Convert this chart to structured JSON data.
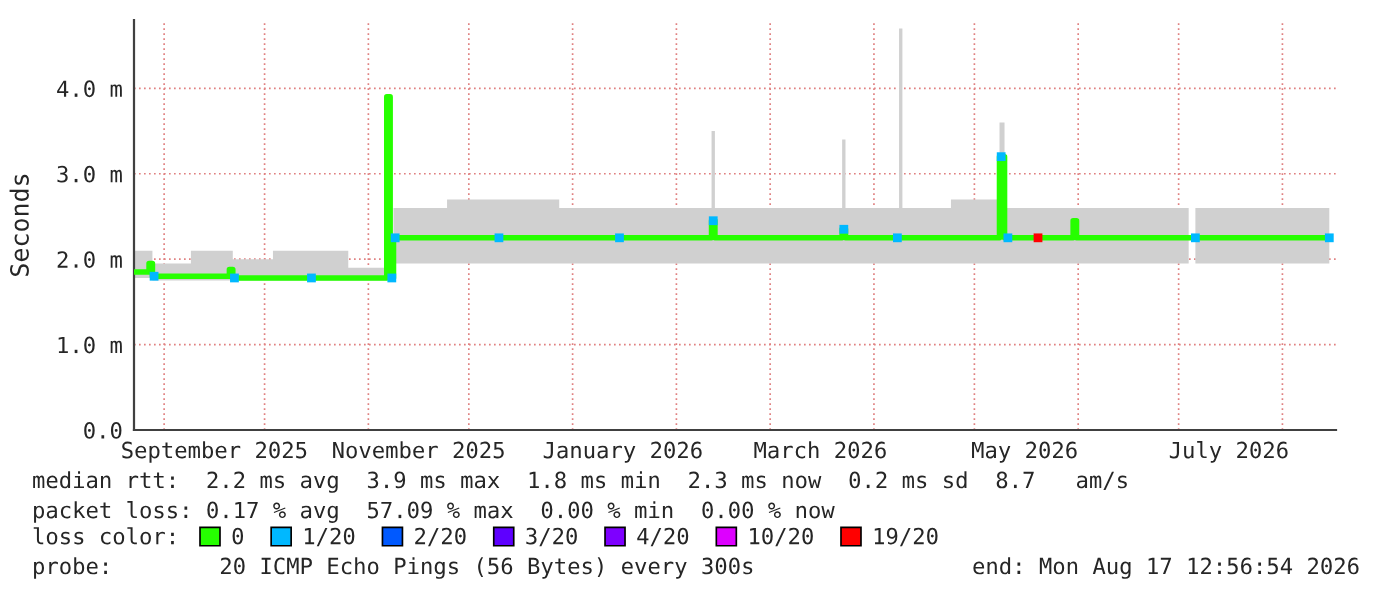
{
  "chart_data": {
    "type": "line",
    "ylabel": "Seconds",
    "x": [
      "2025-08-23",
      "2025-08-27",
      "2025-08-28",
      "2025-08-29",
      "2025-09-20",
      "2025-09-21",
      "2025-09-22",
      "2025-10-15",
      "2025-11-06",
      "2025-11-07",
      "2025-11-08",
      "2025-11-09",
      "2025-12-10",
      "2026-01-15",
      "2026-02-11",
      "2026-02-12",
      "2026-02-13",
      "2026-03-22",
      "2026-03-23",
      "2026-03-24",
      "2026-04-08",
      "2026-04-09",
      "2026-04-10",
      "2026-05-08",
      "2026-05-09",
      "2026-05-11",
      "2026-05-20",
      "2026-05-30",
      "2026-05-31",
      "2026-06-01",
      "2026-07-04",
      "2026-07-05",
      "2026-07-06",
      "2026-08-15"
    ],
    "series": [
      {
        "name": "0",
        "color": "#26ff00",
        "values": [
          1.85,
          1.85,
          1.95,
          1.8,
          1.8,
          1.88,
          1.78,
          1.78,
          1.78,
          3.9,
          1.78,
          2.25,
          2.25,
          2.25,
          2.25,
          2.45,
          2.25,
          2.25,
          2.35,
          2.25,
          2.25,
          2.25,
          2.25,
          2.25,
          3.2,
          2.25,
          2.25,
          2.25,
          2.45,
          2.25,
          2.25,
          null,
          2.25,
          2.25
        ],
        "lower": [
          1.78,
          1.78,
          1.78,
          1.75,
          1.75,
          1.75,
          1.75,
          1.75,
          1.75,
          1.75,
          1.75,
          1.95,
          1.95,
          1.95,
          1.95,
          1.95,
          1.95,
          1.95,
          1.95,
          1.95,
          1.95,
          1.95,
          1.95,
          1.95,
          1.95,
          1.95,
          1.95,
          1.95,
          1.95,
          1.95,
          1.95,
          null,
          1.95,
          1.95
        ],
        "upper": [
          2.1,
          2.1,
          2.1,
          1.95,
          2.1,
          2.1,
          2.0,
          2.1,
          1.9,
          3.9,
          1.9,
          2.6,
          2.7,
          2.6,
          2.6,
          3.5,
          2.6,
          2.6,
          3.4,
          2.6,
          2.6,
          4.7,
          2.6,
          2.7,
          3.6,
          2.6,
          2.6,
          2.6,
          2.6,
          2.6,
          2.6,
          null,
          2.6,
          2.6
        ]
      },
      {
        "name": "1/20",
        "color": "#00b8ff",
        "type": "scatter",
        "marker": "square",
        "values": [
          null,
          null,
          null,
          1.8,
          null,
          null,
          1.78,
          1.78,
          null,
          null,
          1.78,
          2.25,
          2.25,
          2.25,
          null,
          2.45,
          null,
          null,
          2.35,
          null,
          2.25,
          null,
          null,
          null,
          3.2,
          2.25,
          null,
          null,
          null,
          null,
          null,
          null,
          2.25,
          2.25
        ]
      },
      {
        "name": "2/20",
        "color": "#0059ff",
        "type": "scatter",
        "marker": "square",
        "values": [
          null,
          null,
          null,
          null,
          null,
          null,
          null,
          null,
          null,
          null,
          null,
          null,
          null,
          null,
          null,
          null,
          null,
          null,
          null,
          null,
          null,
          null,
          null,
          null,
          null,
          null,
          null,
          null,
          null,
          null,
          null,
          null,
          null,
          null
        ]
      },
      {
        "name": "3/20",
        "color": "#5e00ff",
        "type": "scatter",
        "marker": "square",
        "values": [
          null,
          null,
          null,
          null,
          null,
          null,
          null,
          null,
          null,
          null,
          null,
          null,
          null,
          null,
          null,
          null,
          null,
          null,
          null,
          null,
          null,
          null,
          null,
          null,
          null,
          null,
          null,
          null,
          null,
          null,
          null,
          null,
          null,
          null
        ]
      },
      {
        "name": "4/20",
        "color": "#7e00ff",
        "type": "scatter",
        "marker": "square",
        "values": [
          null,
          null,
          null,
          null,
          null,
          null,
          null,
          null,
          null,
          null,
          null,
          null,
          null,
          null,
          null,
          null,
          null,
          null,
          null,
          null,
          null,
          null,
          null,
          null,
          null,
          null,
          null,
          null,
          null,
          null,
          null,
          null,
          null,
          null
        ]
      },
      {
        "name": "10/20",
        "color": "#dd00ff",
        "type": "scatter",
        "marker": "square",
        "values": [
          null,
          null,
          null,
          null,
          null,
          null,
          null,
          null,
          null,
          null,
          null,
          null,
          null,
          null,
          null,
          null,
          null,
          null,
          null,
          null,
          null,
          null,
          null,
          null,
          null,
          null,
          null,
          null,
          null,
          null,
          null,
          null,
          null,
          null
        ]
      },
      {
        "name": "19/20",
        "color": "#ff0000",
        "type": "scatter",
        "marker": "square",
        "values": [
          null,
          null,
          null,
          null,
          null,
          null,
          null,
          null,
          null,
          null,
          null,
          null,
          null,
          null,
          null,
          null,
          null,
          null,
          null,
          null,
          null,
          null,
          null,
          null,
          null,
          null,
          2.25,
          null,
          null,
          null,
          null,
          null,
          null,
          null
        ]
      }
    ],
    "xlim": [
      "2025-08-23",
      "2026-08-17"
    ],
    "xticks": [
      {
        "value": "2025-09-01",
        "label": null
      },
      {
        "value": "2025-09-16",
        "label": "September 2025"
      },
      {
        "value": "2025-10-01",
        "label": null
      },
      {
        "value": "2025-11-01",
        "label": null
      },
      {
        "value": "2025-11-16",
        "label": "November 2025"
      },
      {
        "value": "2025-12-01",
        "label": null
      },
      {
        "value": "2026-01-01",
        "label": null
      },
      {
        "value": "2026-01-16",
        "label": "January 2026"
      },
      {
        "value": "2026-02-01",
        "label": null
      },
      {
        "value": "2026-03-01",
        "label": null
      },
      {
        "value": "2026-03-16",
        "label": "March 2026"
      },
      {
        "value": "2026-04-01",
        "label": null
      },
      {
        "value": "2026-05-01",
        "label": null
      },
      {
        "value": "2026-05-16",
        "label": "May 2026"
      },
      {
        "value": "2026-06-01",
        "label": null
      },
      {
        "value": "2026-07-01",
        "label": null
      },
      {
        "value": "2026-07-16",
        "label": "July 2026"
      },
      {
        "value": "2026-08-01",
        "label": null
      }
    ],
    "ylim": [
      0,
      4.8
    ],
    "yticks": [
      {
        "value": 0,
        "label": "0.0"
      },
      {
        "value": 1,
        "label": "1.0 m"
      },
      {
        "value": 2,
        "label": "2.0 m"
      },
      {
        "value": 3,
        "label": "3.0 m"
      },
      {
        "value": 4,
        "label": "4.0 m"
      }
    ],
    "grid": true,
    "legend": "bottom",
    "legend_title": "loss color:",
    "line_style": "solid",
    "annotations": [
      "median rtt:  2.2 ms avg  3.9 ms max  1.8 ms min  2.3 ms now  0.2 ms sd  8.7   am/s",
      "packet loss: 0.17 % avg  57.09 % max  0.00 % min  0.00 % now",
      "probe:        20 ICMP Echo Pings (56 Bytes) every 300s",
      "end: Mon Aug 17 12:56:54 2026"
    ]
  }
}
